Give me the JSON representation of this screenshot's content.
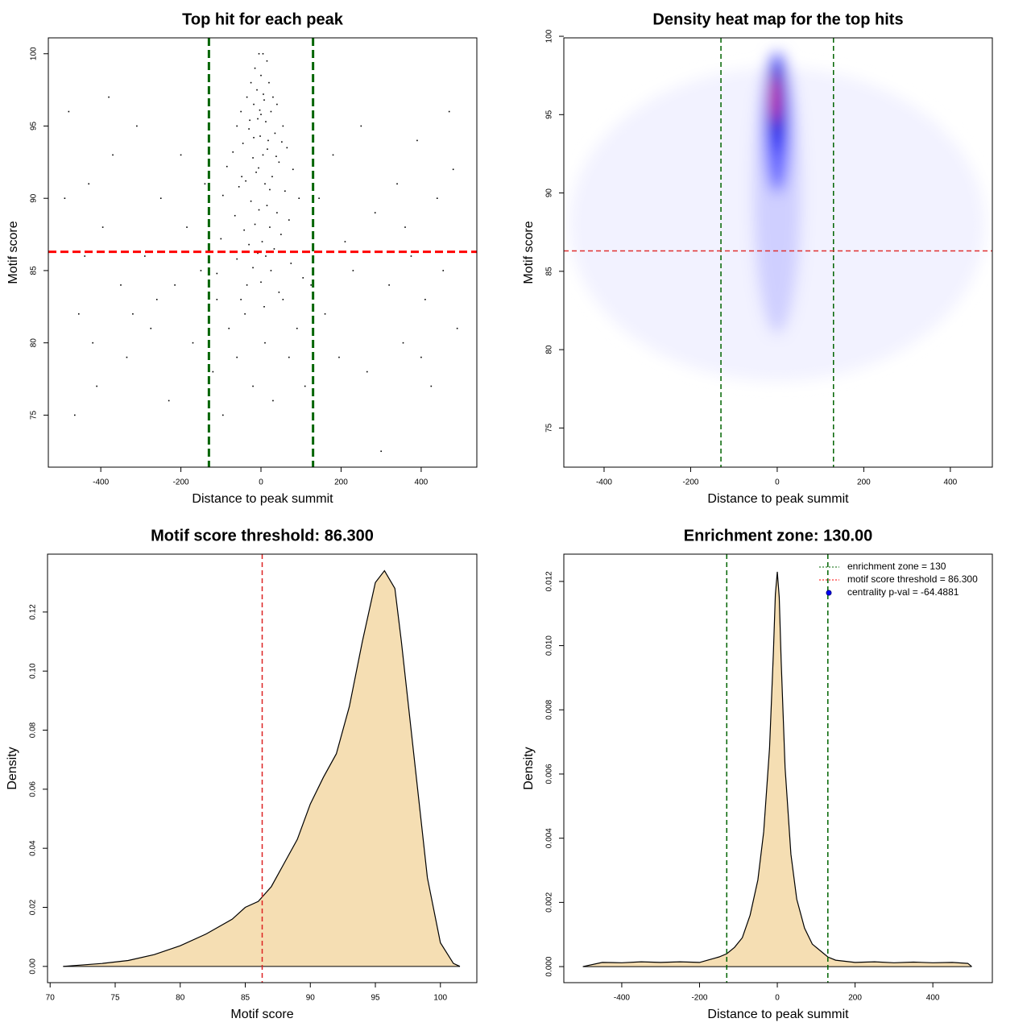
{
  "chart_data": [
    {
      "type": "scatter",
      "title": "Top hit for each peak",
      "x_label": "Distance to peak summit",
      "y_label": "Motif score",
      "xlim": [
        -531,
        539
      ],
      "ylim": [
        71.4,
        101.1
      ],
      "xticks": [
        -400,
        -200,
        0,
        200,
        400
      ],
      "yticks": [
        75,
        80,
        85,
        90,
        95,
        100
      ],
      "color": "#000000",
      "x": [
        -480,
        -455,
        -430,
        -410,
        -395,
        -370,
        -350,
        -335,
        -310,
        -290,
        -275,
        -250,
        -230,
        -215,
        -200,
        -185,
        -170,
        -150,
        -140,
        -120,
        -110,
        -95,
        -80,
        -60,
        -40,
        -20,
        10,
        30,
        55,
        70,
        90,
        110,
        125,
        145,
        160,
        180,
        195,
        210,
        230,
        250,
        265,
        285,
        300,
        320,
        340,
        355,
        375,
        390,
        410,
        425,
        440,
        455,
        470,
        490,
        -465,
        -440,
        -420,
        -380,
        -320,
        -260,
        400,
        360,
        -490,
        480,
        -5,
        5,
        15,
        -15,
        0,
        -25,
        20,
        -10,
        30,
        -35,
        8,
        -18,
        40,
        -50,
        25,
        0,
        -8,
        12,
        -60,
        55,
        -30,
        35,
        -2,
        18,
        -45,
        65,
        -70,
        5,
        -20,
        45,
        -85,
        80,
        -12,
        28,
        -38,
        10,
        -55,
        60,
        -95,
        95,
        -25,
        15,
        -5,
        40,
        -65,
        70,
        -15,
        22,
        -42,
        50,
        -100,
        3,
        -30,
        33,
        -8,
        12,
        -60,
        75,
        -20,
        25,
        -110,
        105,
        0,
        -35,
        45,
        -50,
        8,
        -18,
        6,
        -3,
        16,
        -28,
        38,
        -6,
        22,
        -48,
        52
      ],
      "y": [
        96,
        82,
        91,
        77,
        88,
        93,
        84,
        79,
        95,
        86,
        81,
        90,
        76,
        84,
        93,
        88,
        80,
        85,
        91,
        78,
        83,
        75,
        81,
        79,
        82,
        77,
        80,
        76,
        83,
        79,
        81,
        77,
        84,
        90,
        82,
        93,
        79,
        87,
        85,
        95,
        78,
        89,
        72.5,
        84,
        91,
        80,
        86,
        94,
        83,
        77,
        90,
        85,
        96,
        81,
        75,
        86,
        80,
        97,
        82,
        83,
        79,
        88,
        90,
        92,
        100,
        100,
        99.5,
        99,
        98.5,
        98,
        98,
        97.5,
        97,
        97,
        96.8,
        96.5,
        96.5,
        96,
        96,
        95.8,
        95.5,
        95.3,
        95,
        95,
        94.8,
        94.5,
        94.3,
        94,
        93.8,
        93.5,
        93.2,
        93,
        92.8,
        92.5,
        92.2,
        92,
        91.8,
        91.5,
        91.2,
        91,
        90.8,
        90.5,
        90.2,
        90,
        89.8,
        89.5,
        89.2,
        89,
        88.8,
        88.5,
        88.2,
        88,
        87.8,
        87.5,
        87.2,
        87,
        86.8,
        86.5,
        86.2,
        86,
        85.8,
        85.5,
        85.2,
        85,
        84.8,
        84.5,
        84.2,
        84,
        83.5,
        83,
        82.5,
        94.2,
        97.2,
        96.1,
        93.4,
        95.4,
        92.9,
        92.1,
        90.6,
        91.5,
        93.9
      ],
      "vlines": [
        -130,
        130
      ],
      "vline_color": "#006400",
      "hlines": [
        86.3
      ],
      "hline_color": "#ff0000"
    },
    {
      "type": "heatmap",
      "title": "Density heat map for the top hits",
      "x_label": "Distance to peak summit",
      "y_label": "Motif score",
      "xlim": [
        -493,
        497
      ],
      "ylim": [
        72.5,
        99.9
      ],
      "xticks": [
        -400,
        -200,
        0,
        200,
        400
      ],
      "yticks": [
        75,
        80,
        85,
        90,
        95,
        100
      ],
      "levels": [
        {
          "x": 0,
          "y": 88,
          "rx": 480,
          "ry": 10,
          "color": "#f2f2ff"
        },
        {
          "x": 0,
          "y": 90,
          "rx": 55,
          "ry": 9,
          "color": "#cfcfff"
        },
        {
          "x": 0,
          "y": 94.5,
          "rx": 30,
          "ry": 4.5,
          "color": "#6060ff"
        },
        {
          "x": 0,
          "y": 95.5,
          "rx": 18,
          "ry": 3,
          "color": "#0000ee"
        },
        {
          "x": -3,
          "y": 96,
          "rx": 11,
          "ry": 2.2,
          "color": "#0000a0"
        },
        {
          "x": -5,
          "y": 96,
          "rx": 7,
          "ry": 1.5,
          "color": "#ff0000"
        }
      ],
      "vlines": [
        -130,
        130
      ],
      "vline_color": "#006400",
      "hlines": [
        86.3
      ],
      "hline_color": "#e03030"
    },
    {
      "type": "density",
      "title": "Motif score threshold: 86.300",
      "x_label": "Motif score",
      "y_label": "Density",
      "xlim": [
        69.8,
        102.8
      ],
      "ylim": [
        -0.0055,
        0.1396
      ],
      "xticks": [
        70,
        75,
        80,
        85,
        90,
        95,
        100
      ],
      "yticks": [
        {
          "value": 0,
          "label": "0.00"
        },
        {
          "value": 0.02,
          "label": "0.02"
        },
        {
          "value": 0.04,
          "label": "0.04"
        },
        {
          "value": 0.06,
          "label": "0.06"
        },
        {
          "value": 0.08,
          "label": "0.08"
        },
        {
          "value": 0.1,
          "label": "0.10"
        },
        {
          "value": 0.12,
          "label": "0.12"
        }
      ],
      "color": "#f5deb3",
      "x": [
        71,
        74,
        76,
        78,
        80,
        82,
        84,
        85,
        86,
        87,
        88,
        89,
        90,
        91,
        92,
        93,
        94,
        95,
        95.7,
        96.5,
        97,
        98,
        99,
        100,
        101,
        101.5
      ],
      "values": [
        0,
        0.001,
        0.002,
        0.004,
        0.007,
        0.011,
        0.016,
        0.02,
        0.022,
        0.027,
        0.035,
        0.043,
        0.055,
        0.064,
        0.072,
        0.088,
        0.11,
        0.13,
        0.134,
        0.128,
        0.11,
        0.07,
        0.03,
        0.008,
        0.001,
        0
      ],
      "vlines": [
        86.3
      ],
      "vline_color": "#dd2222"
    },
    {
      "type": "density",
      "title": "Enrichment zone: 130.00",
      "x_label": "Distance to peak summit",
      "y_label": "Density",
      "xlim": [
        -549,
        553
      ],
      "ylim": [
        -0.0005,
        0.01285
      ],
      "xticks": [
        -400,
        -200,
        0,
        200,
        400
      ],
      "yticks": [
        {
          "value": 0,
          "label": "0.000"
        },
        {
          "value": 0.002,
          "label": "0.002"
        },
        {
          "value": 0.004,
          "label": "0.004"
        },
        {
          "value": 0.006,
          "label": "0.006"
        },
        {
          "value": 0.008,
          "label": "0.008"
        },
        {
          "value": 0.01,
          "label": "0.010"
        },
        {
          "value": 0.012,
          "label": "0.012"
        }
      ],
      "color": "#f5deb3",
      "x": [
        -500,
        -450,
        -400,
        -350,
        -300,
        -250,
        -200,
        -150,
        -130,
        -110,
        -90,
        -70,
        -50,
        -35,
        -20,
        -10,
        -5,
        0,
        5,
        10,
        20,
        35,
        50,
        70,
        90,
        110,
        130,
        150,
        200,
        250,
        300,
        350,
        400,
        450,
        490,
        500
      ],
      "values": [
        0,
        0.00013,
        0.00012,
        0.00015,
        0.00013,
        0.00015,
        0.00013,
        0.0003,
        0.0004,
        0.0006,
        0.0009,
        0.0016,
        0.0027,
        0.0042,
        0.0068,
        0.0098,
        0.0116,
        0.0123,
        0.0115,
        0.0095,
        0.0062,
        0.0035,
        0.0021,
        0.0012,
        0.0007,
        0.0005,
        0.0003,
        0.0002,
        0.00013,
        0.00015,
        0.00012,
        0.00014,
        0.00012,
        0.00013,
        0.0001,
        0
      ],
      "vlines": [
        -130,
        130
      ],
      "vline_color": "#006400",
      "legend": [
        {
          "label": "enrichment zone = 130",
          "color": "#006400",
          "marker": "line"
        },
        {
          "label": "motif score threshold = 86.300",
          "color": "#ff0000",
          "marker": "line"
        },
        {
          "label": "centrality p-val = -64.4881",
          "color": "#0000ff",
          "marker": "point"
        }
      ]
    }
  ]
}
